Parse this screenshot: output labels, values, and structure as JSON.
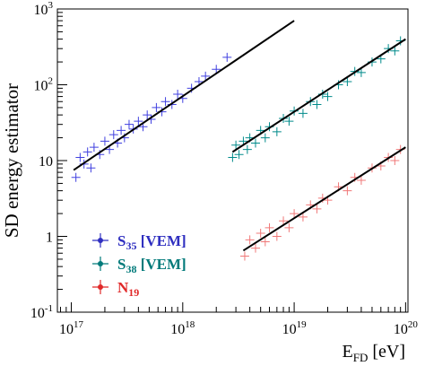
{
  "chart_data": {
    "type": "scatter",
    "ylabel": "SD energy estimator",
    "xlabel": "E",
    "xlabel_sub": "FD",
    "xlabel_suffix": " [eV]",
    "log_x": true,
    "log_y": true,
    "xlim": [
      7.5e+16,
      1.05e+20
    ],
    "ylim": [
      0.1,
      1000
    ],
    "xticks": [
      {
        "value": 1e+17,
        "label": "10",
        "sup": "17"
      },
      {
        "value": 1e+18,
        "label": "10",
        "sup": "18"
      },
      {
        "value": 1e+19,
        "label": "10",
        "sup": "19"
      },
      {
        "value": 1e+20,
        "label": "10",
        "sup": "20"
      }
    ],
    "yticks": [
      {
        "value": 0.1,
        "label": "10",
        "sup": "-1"
      },
      1,
      10,
      {
        "value": 100,
        "label": "10",
        "sup": "2"
      },
      {
        "value": 1000,
        "label": "10",
        "sup": "3"
      }
    ],
    "series": [
      {
        "name": "S",
        "name_sub": "35",
        "name_suffix": " [VEM]",
        "color": "#4040e0",
        "label_color": "#2f2fc0",
        "x": [
          1.1e+17,
          1.2e+17,
          1.3e+17,
          1.4e+17,
          1.5e+17,
          1.6e+17,
          1.8e+17,
          2e+17,
          2.2e+17,
          2.4e+17,
          2.6e+17,
          2.8e+17,
          3e+17,
          3.3e+17,
          3.6e+17,
          4e+17,
          4.4e+17,
          4.8e+17,
          5.2e+17,
          5.8e+17,
          6.5e+17,
          7e+17,
          8e+17,
          9e+17,
          1e+18,
          1.2e+18,
          1.4e+18,
          1.6e+18,
          2e+18,
          2.5e+18
        ],
        "values": [
          6,
          11,
          9,
          13,
          8,
          15,
          12,
          18,
          14,
          22,
          17,
          25,
          20,
          30,
          26,
          33,
          28,
          40,
          35,
          50,
          44,
          60,
          55,
          75,
          66,
          90,
          110,
          130,
          160,
          230
        ]
      },
      {
        "name": "S",
        "name_sub": "38",
        "name_suffix": " [VEM]",
        "color": "#008b8b",
        "label_color": "#007a7a",
        "x": [
          2.8e+18,
          3e+18,
          3.2e+18,
          3.5e+18,
          3.8e+18,
          4e+18,
          4.5e+18,
          5e+18,
          5.5e+18,
          6e+18,
          7e+18,
          8e+18,
          9e+18,
          1e+19,
          1.2e+19,
          1.4e+19,
          1.6e+19,
          1.8e+19,
          2e+19,
          2.5e+19,
          3e+19,
          3.5e+19,
          4e+19,
          5e+19,
          6e+19,
          7e+19,
          8e+19,
          9e+19
        ],
        "values": [
          11,
          16,
          12,
          18,
          14,
          20,
          17,
          25,
          20,
          28,
          24,
          36,
          33,
          45,
          42,
          60,
          55,
          75,
          70,
          100,
          110,
          150,
          145,
          200,
          220,
          300,
          280,
          380
        ]
      },
      {
        "name": "N",
        "name_sub": "19",
        "name_suffix": "",
        "color": "#f07878",
        "label_color": "#e02828",
        "x": [
          3.6e+18,
          4e+18,
          4.5e+18,
          5e+18,
          5.5e+18,
          6e+18,
          7e+18,
          8e+18,
          9e+18,
          1e+19,
          1.2e+19,
          1.4e+19,
          1.6e+19,
          1.8e+19,
          2e+19,
          2.5e+19,
          3e+19,
          3.5e+19,
          4e+19,
          5e+19,
          6e+19,
          7e+19,
          8e+19,
          9e+19
        ],
        "values": [
          0.55,
          0.9,
          0.7,
          1.1,
          0.85,
          1.3,
          1.0,
          1.6,
          1.3,
          2.0,
          1.8,
          2.6,
          2.3,
          3.2,
          3.0,
          4.5,
          4.0,
          6,
          5.5,
          8,
          8.5,
          11,
          10,
          14
        ]
      }
    ],
    "fits": [
      {
        "x": [
          1.05e+17,
          1e+19
        ],
        "values": [
          7.5,
          700
        ],
        "color": "#000000"
      },
      {
        "x": [
          2.8e+18,
          1e+20
        ],
        "values": [
          13,
          400
        ],
        "color": "#000000"
      },
      {
        "x": [
          3.5e+18,
          1e+20
        ],
        "values": [
          0.65,
          15
        ],
        "color": "#000000"
      }
    ]
  }
}
